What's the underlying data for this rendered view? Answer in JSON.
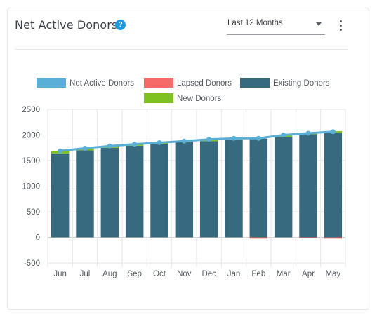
{
  "header": {
    "title": "Net Active Donors",
    "help_icon": "question-circle-icon",
    "period_select": {
      "selected": "Last 12 Months"
    },
    "menu_icon": "kebab-menu-icon"
  },
  "chart_data": {
    "type": "bar",
    "stacked": true,
    "categories": [
      "Jun",
      "Jul",
      "Aug",
      "Sep",
      "Oct",
      "Nov",
      "Dec",
      "Jan",
      "Feb",
      "Mar",
      "Apr",
      "May"
    ],
    "series": [
      {
        "name": "Net Active Donors",
        "type": "line",
        "color": "#5aafd6",
        "values": [
          1690,
          1740,
          1785,
          1820,
          1850,
          1880,
          1915,
          1935,
          1935,
          2000,
          2035,
          2065
        ]
      },
      {
        "name": "Lapsed Donors",
        "type": "bar",
        "color": "#f66a6a",
        "values": [
          0,
          0,
          0,
          0,
          0,
          0,
          0,
          0,
          -25,
          0,
          -15,
          -25
        ]
      },
      {
        "name": "Existing Donors",
        "type": "bar",
        "color": "#37697f",
        "values": [
          1640,
          1700,
          1750,
          1790,
          1820,
          1860,
          1880,
          1915,
          1930,
          1965,
          2015,
          2045
        ]
      },
      {
        "name": "New Donors",
        "type": "bar",
        "color": "#7fc21f",
        "values": [
          40,
          35,
          30,
          25,
          25,
          20,
          30,
          20,
          0,
          30,
          15,
          30
        ]
      }
    ],
    "ylim": [
      -500,
      2500
    ],
    "yticks": [
      2500,
      2000,
      1500,
      1000,
      500,
      0,
      -500
    ],
    "grid": true,
    "legend": "top-center",
    "xlabel": "",
    "ylabel": "",
    "title": ""
  }
}
